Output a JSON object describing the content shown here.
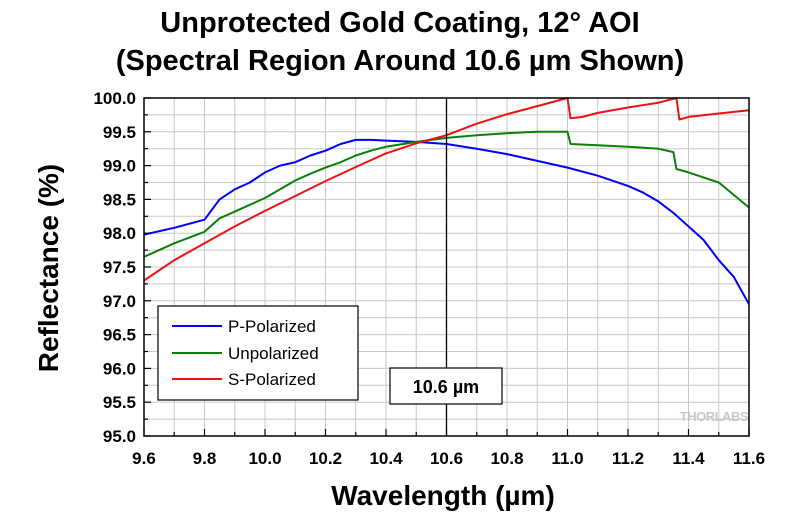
{
  "chart_data": {
    "type": "line",
    "title": "Unprotected Gold Coating, 12° AOI",
    "subtitle": "(Spectral Region Around 10.6 µm Shown)",
    "xlabel": "Wavelength (µm)",
    "ylabel": "Reflectance (%)",
    "xlim": [
      9.6,
      11.6
    ],
    "ylim": [
      95.0,
      100.0
    ],
    "xticks": [
      "9.6",
      "9.8",
      "10.0",
      "10.2",
      "10.4",
      "10.6",
      "10.8",
      "11.0",
      "11.2",
      "11.4",
      "11.6"
    ],
    "yticks": [
      "95.0",
      "95.5",
      "96.0",
      "96.5",
      "97.0",
      "97.5",
      "98.0",
      "98.5",
      "99.0",
      "99.5",
      "100.0"
    ],
    "grid": true,
    "legend_position": "lower-left",
    "marker": {
      "x": 10.6,
      "label": "10.6 µm"
    },
    "watermark": "THORLABS",
    "series": [
      {
        "name": "P-Polarized",
        "color": "#0000ff",
        "x": [
          9.6,
          9.7,
          9.8,
          9.85,
          9.9,
          9.95,
          10.0,
          10.05,
          10.1,
          10.15,
          10.2,
          10.25,
          10.3,
          10.35,
          10.4,
          10.5,
          10.6,
          10.7,
          10.8,
          10.9,
          11.0,
          11.1,
          11.2,
          11.25,
          11.3,
          11.35,
          11.4,
          11.45,
          11.5,
          11.55,
          11.6
        ],
        "y": [
          97.98,
          98.08,
          98.2,
          98.5,
          98.65,
          98.75,
          98.9,
          99.0,
          99.05,
          99.15,
          99.22,
          99.32,
          99.38,
          99.38,
          99.37,
          99.35,
          99.32,
          99.25,
          99.17,
          99.07,
          98.97,
          98.85,
          98.7,
          98.6,
          98.47,
          98.3,
          98.1,
          97.9,
          97.6,
          97.35,
          96.95
        ]
      },
      {
        "name": "Unpolarized",
        "color": "#0a800a",
        "x": [
          9.6,
          9.7,
          9.8,
          9.85,
          9.9,
          9.95,
          10.0,
          10.05,
          10.1,
          10.15,
          10.2,
          10.25,
          10.3,
          10.35,
          10.4,
          10.5,
          10.6,
          10.7,
          10.8,
          10.9,
          11.0,
          11.01,
          11.1,
          11.2,
          11.3,
          11.35,
          11.36,
          11.4,
          11.5,
          11.6
        ],
        "y": [
          97.65,
          97.85,
          98.02,
          98.22,
          98.32,
          98.42,
          98.52,
          98.65,
          98.78,
          98.88,
          98.97,
          99.05,
          99.15,
          99.22,
          99.28,
          99.35,
          99.41,
          99.45,
          99.48,
          99.5,
          99.5,
          99.32,
          99.3,
          99.28,
          99.25,
          99.2,
          98.95,
          98.9,
          98.75,
          98.38
        ]
      },
      {
        "name": "S-Polarized",
        "color": "#ee1111",
        "x": [
          9.6,
          9.7,
          9.8,
          9.9,
          10.0,
          10.1,
          10.2,
          10.3,
          10.4,
          10.5,
          10.6,
          10.7,
          10.8,
          10.9,
          11.0,
          11.01,
          11.05,
          11.1,
          11.2,
          11.3,
          11.36,
          11.37,
          11.4,
          11.5,
          11.6
        ],
        "y": [
          97.3,
          97.6,
          97.85,
          98.1,
          98.33,
          98.55,
          98.77,
          98.98,
          99.18,
          99.33,
          99.45,
          99.62,
          99.76,
          99.88,
          100.0,
          99.7,
          99.72,
          99.78,
          99.86,
          99.93,
          100.0,
          99.68,
          99.72,
          99.77,
          99.82
        ]
      }
    ]
  }
}
